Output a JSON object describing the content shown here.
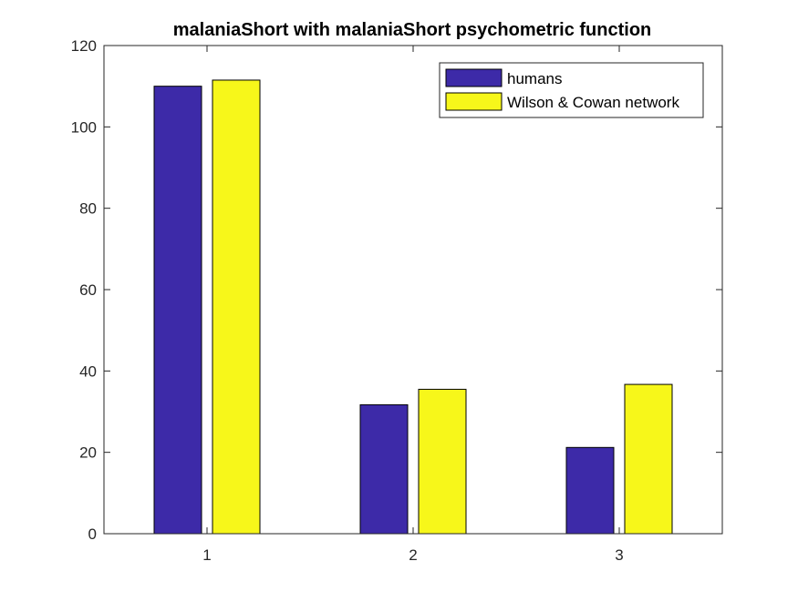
{
  "chart_data": {
    "type": "bar",
    "title": "malaniaShort with malaniaShort psychometric function",
    "xlabel": "",
    "ylabel": "",
    "categories": [
      "1",
      "2",
      "3"
    ],
    "series": [
      {
        "name": "humans",
        "color": "#3d2aa8",
        "values": [
          110,
          31.7,
          21.2
        ]
      },
      {
        "name": "Wilson & Cowan network",
        "color": "#f7f71a",
        "values": [
          111.5,
          35.5,
          36.7
        ]
      }
    ],
    "ylim": [
      0,
      120
    ],
    "yticks": [
      0,
      20,
      40,
      60,
      80,
      100,
      120
    ],
    "grid": false,
    "legend_position": "top-right"
  }
}
